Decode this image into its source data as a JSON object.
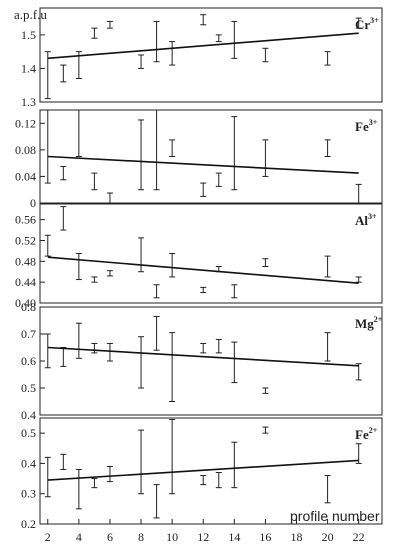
{
  "chart_data": {
    "type": "scatter",
    "shared_x": {
      "label": "profile number",
      "ticks": [
        2,
        4,
        6,
        8,
        10,
        12,
        14,
        16,
        18,
        20,
        22
      ],
      "range": [
        1.5,
        23.5
      ]
    },
    "ylabel": "a.p.f.u",
    "panels": [
      {
        "element": "Cr",
        "charge": "3+",
        "ylim": [
          1.3,
          1.58
        ],
        "yticks": [
          "1.3",
          "1.4",
          "1.5"
        ],
        "points": [
          {
            "x": 2,
            "low": 1.31,
            "high": 1.45
          },
          {
            "x": 3,
            "low": 1.36,
            "high": 1.41
          },
          {
            "x": 4,
            "low": 1.37,
            "high": 1.45
          },
          {
            "x": 5,
            "low": 1.49,
            "high": 1.52
          },
          {
            "x": 6,
            "low": 1.52,
            "high": 1.54
          },
          {
            "x": 8,
            "low": 1.4,
            "high": 1.44
          },
          {
            "x": 9,
            "low": 1.42,
            "high": 1.54
          },
          {
            "x": 10,
            "low": 1.41,
            "high": 1.48
          },
          {
            "x": 12,
            "low": 1.53,
            "high": 1.56
          },
          {
            "x": 13,
            "low": 1.48,
            "high": 1.5
          },
          {
            "x": 14,
            "low": 1.43,
            "high": 1.54
          },
          {
            "x": 16,
            "low": 1.42,
            "high": 1.46
          },
          {
            "x": 20,
            "low": 1.41,
            "high": 1.45
          },
          {
            "x": 22,
            "low": 1.52,
            "high": 1.55
          }
        ],
        "trend": [
          [
            2,
            1.43
          ],
          [
            22,
            1.505
          ]
        ]
      },
      {
        "element": "Fe",
        "charge": "3+",
        "ylim": [
          0,
          0.14
        ],
        "yticks": [
          "0",
          "0.04",
          "0.08",
          "0.12"
        ],
        "points": [
          {
            "x": 2,
            "low": 0.03,
            "high": 0.14
          },
          {
            "x": 3,
            "low": 0.035,
            "high": 0.055
          },
          {
            "x": 4,
            "low": 0.07,
            "high": 0.14
          },
          {
            "x": 5,
            "low": 0.02,
            "high": 0.045
          },
          {
            "x": 6,
            "low": 0.0,
            "high": 0.015
          },
          {
            "x": 8,
            "low": 0.02,
            "high": 0.125
          },
          {
            "x": 9,
            "low": 0.02,
            "high": 0.14
          },
          {
            "x": 10,
            "low": 0.07,
            "high": 0.095
          },
          {
            "x": 12,
            "low": 0.01,
            "high": 0.03
          },
          {
            "x": 13,
            "low": 0.025,
            "high": 0.045
          },
          {
            "x": 14,
            "low": 0.02,
            "high": 0.13
          },
          {
            "x": 16,
            "low": 0.04,
            "high": 0.095
          },
          {
            "x": 20,
            "low": 0.07,
            "high": 0.095
          },
          {
            "x": 22,
            "low": 0.0,
            "high": 0.028
          }
        ],
        "trend": [
          [
            2,
            0.07
          ],
          [
            22,
            0.045
          ]
        ]
      },
      {
        "element": "Al",
        "charge": "3+",
        "ylim": [
          0.4,
          0.59
        ],
        "yticks": [
          "0.40",
          "0.44",
          "0.48",
          "0.52",
          "0.56"
        ],
        "points": [
          {
            "x": 2,
            "low": 0.49,
            "high": 0.53
          },
          {
            "x": 3,
            "low": 0.54,
            "high": 0.585
          },
          {
            "x": 4,
            "low": 0.445,
            "high": 0.495
          },
          {
            "x": 5,
            "low": 0.44,
            "high": 0.45
          },
          {
            "x": 6,
            "low": 0.452,
            "high": 0.462
          },
          {
            "x": 8,
            "low": 0.46,
            "high": 0.525
          },
          {
            "x": 9,
            "low": 0.41,
            "high": 0.435
          },
          {
            "x": 10,
            "low": 0.45,
            "high": 0.495
          },
          {
            "x": 12,
            "low": 0.42,
            "high": 0.43
          },
          {
            "x": 13,
            "low": 0.46,
            "high": 0.47
          },
          {
            "x": 14,
            "low": 0.41,
            "high": 0.435
          },
          {
            "x": 16,
            "low": 0.47,
            "high": 0.485
          },
          {
            "x": 20,
            "low": 0.45,
            "high": 0.49
          },
          {
            "x": 22,
            "low": 0.44,
            "high": 0.45
          }
        ],
        "trend": [
          [
            2,
            0.488
          ],
          [
            22,
            0.438
          ]
        ]
      },
      {
        "element": "Mg",
        "charge": "2+",
        "ylim": [
          0.4,
          0.8
        ],
        "yticks": [
          "0.4",
          "0.5",
          "0.6",
          "0.7",
          "0.8"
        ],
        "points": [
          {
            "x": 2,
            "low": 0.575,
            "high": 0.7
          },
          {
            "x": 3,
            "low": 0.58,
            "high": 0.65
          },
          {
            "x": 4,
            "low": 0.61,
            "high": 0.74
          },
          {
            "x": 5,
            "low": 0.63,
            "high": 0.665
          },
          {
            "x": 6,
            "low": 0.6,
            "high": 0.665
          },
          {
            "x": 8,
            "low": 0.5,
            "high": 0.69
          },
          {
            "x": 9,
            "low": 0.64,
            "high": 0.765
          },
          {
            "x": 10,
            "low": 0.45,
            "high": 0.705
          },
          {
            "x": 12,
            "low": 0.63,
            "high": 0.665
          },
          {
            "x": 13,
            "low": 0.63,
            "high": 0.68
          },
          {
            "x": 14,
            "low": 0.52,
            "high": 0.67
          },
          {
            "x": 16,
            "low": 0.48,
            "high": 0.5
          },
          {
            "x": 20,
            "low": 0.6,
            "high": 0.705
          },
          {
            "x": 22,
            "low": 0.53,
            "high": 0.59
          }
        ],
        "trend": [
          [
            2,
            0.65
          ],
          [
            22,
            0.582
          ]
        ]
      },
      {
        "element": "Fe",
        "charge": "2+",
        "ylim": [
          0.2,
          0.55
        ],
        "yticks": [
          "0.2",
          "0.3",
          "0.4",
          "0.5"
        ],
        "points": [
          {
            "x": 2,
            "low": 0.29,
            "high": 0.42
          },
          {
            "x": 3,
            "low": 0.38,
            "high": 0.43
          },
          {
            "x": 4,
            "low": 0.25,
            "high": 0.38
          },
          {
            "x": 5,
            "low": 0.32,
            "high": 0.35
          },
          {
            "x": 6,
            "low": 0.34,
            "high": 0.39
          },
          {
            "x": 8,
            "low": 0.3,
            "high": 0.51
          },
          {
            "x": 9,
            "low": 0.22,
            "high": 0.33
          },
          {
            "x": 10,
            "low": 0.3,
            "high": 0.545
          },
          {
            "x": 12,
            "low": 0.33,
            "high": 0.36
          },
          {
            "x": 13,
            "low": 0.32,
            "high": 0.37
          },
          {
            "x": 14,
            "low": 0.32,
            "high": 0.47
          },
          {
            "x": 16,
            "low": 0.5,
            "high": 0.52
          },
          {
            "x": 20,
            "low": 0.27,
            "high": 0.36
          },
          {
            "x": 22,
            "low": 0.4,
            "high": 0.465
          }
        ],
        "trend": [
          [
            2,
            0.345
          ],
          [
            22,
            0.41
          ]
        ]
      }
    ]
  }
}
